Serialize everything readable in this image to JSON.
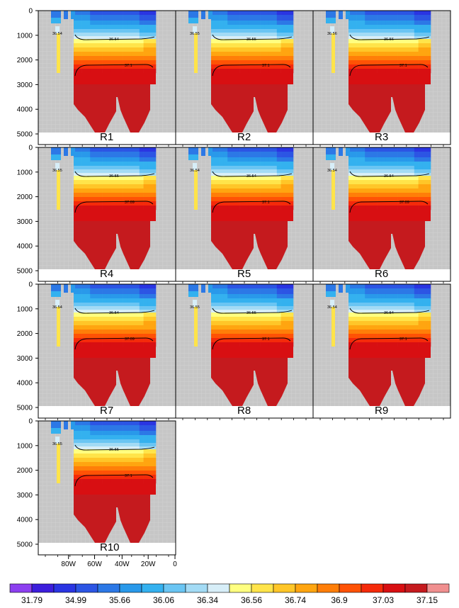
{
  "chart_data": {
    "type": "heatmap",
    "title": "",
    "xlabel": "",
    "ylabel": "",
    "x_range": [
      -100,
      0
    ],
    "y_range": [
      0,
      5000
    ],
    "y_inverted": true,
    "y_ticks": [
      "0",
      "1000",
      "2000",
      "3000",
      "4000",
      "5000"
    ],
    "x_ticks": [
      "80W",
      "60W",
      "40W",
      "20W",
      "0"
    ],
    "colormap": {
      "colors": [
        "#8c3ff0",
        "#3c1edc",
        "#2a35e2",
        "#2c55e4",
        "#2c78e6",
        "#2999ea",
        "#34b1ef",
        "#6ac5f3",
        "#a3dbf5",
        "#d7eef8",
        "#ffff80",
        "#ffe44a",
        "#ffc628",
        "#ffa510",
        "#ff7e08",
        "#ff5205",
        "#f52a0a",
        "#d80f12",
        "#c51a1e",
        "#f08f8f"
      ],
      "labels": [
        "31.79",
        "34.99",
        "35.66",
        "36.06",
        "36.34",
        "36.56",
        "36.74",
        "36.9",
        "37.03",
        "37.15"
      ],
      "label_positions": [
        1,
        3,
        5,
        7,
        9,
        11,
        13,
        15,
        17,
        19
      ]
    },
    "panels": [
      {
        "name": "R1",
        "upper_contour": "36.54",
        "upper_left": "36.54",
        "lower_contour": "37.1"
      },
      {
        "name": "R2",
        "upper_contour": "36.55",
        "upper_left": "36.55",
        "lower_contour": "37.1"
      },
      {
        "name": "R3",
        "upper_contour": "36.56",
        "upper_left": "36.56",
        "lower_contour": "37.1"
      },
      {
        "name": "R4",
        "upper_contour": "36.55",
        "upper_left": "36.55",
        "lower_contour": "37.09"
      },
      {
        "name": "R5",
        "upper_contour": "36.54",
        "upper_left": "36.54",
        "lower_contour": "37.1"
      },
      {
        "name": "R6",
        "upper_contour": "36.54",
        "upper_left": "36.54",
        "lower_contour": "37.09"
      },
      {
        "name": "R7",
        "upper_contour": "36.54",
        "upper_left": "36.54",
        "lower_contour": "37.09"
      },
      {
        "name": "R8",
        "upper_contour": "36.55",
        "upper_left": "36.55",
        "lower_contour": "37.1"
      },
      {
        "name": "R9",
        "upper_contour": "36.54",
        "upper_left": "36.54",
        "lower_contour": "37.1"
      },
      {
        "name": "R10",
        "upper_contour": "36.55",
        "upper_left": "36.55",
        "lower_contour": "37.1"
      }
    ]
  }
}
